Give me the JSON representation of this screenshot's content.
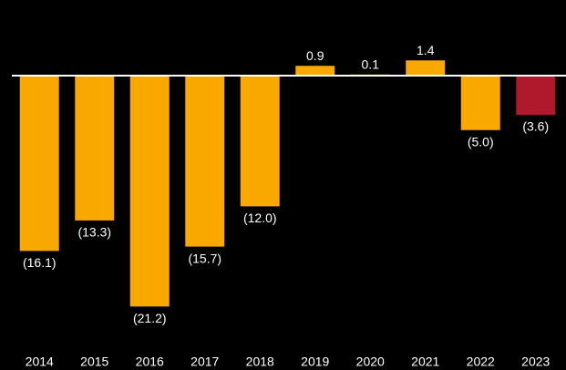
{
  "chart_data": {
    "type": "bar",
    "categories": [
      "2014",
      "2015",
      "2016",
      "2017",
      "2018",
      "2019",
      "2020",
      "2021",
      "2022",
      "2023"
    ],
    "values": [
      -16.1,
      -13.3,
      -21.2,
      -15.7,
      -12.0,
      0.9,
      0.1,
      1.4,
      -5.0,
      -3.6
    ],
    "value_labels": [
      "(16.1)",
      "(13.3)",
      "(21.2)",
      "(15.7)",
      "(12.0)",
      "0.9",
      "0.1",
      "1.4",
      "(5.0)",
      "(3.6)"
    ],
    "colors": [
      "#f9a800",
      "#f9a800",
      "#f9a800",
      "#f9a800",
      "#f9a800",
      "#f9a800",
      "#f9a800",
      "#f9a800",
      "#f9a800",
      "#b0192b"
    ],
    "ylim": [
      -25,
      5
    ]
  }
}
